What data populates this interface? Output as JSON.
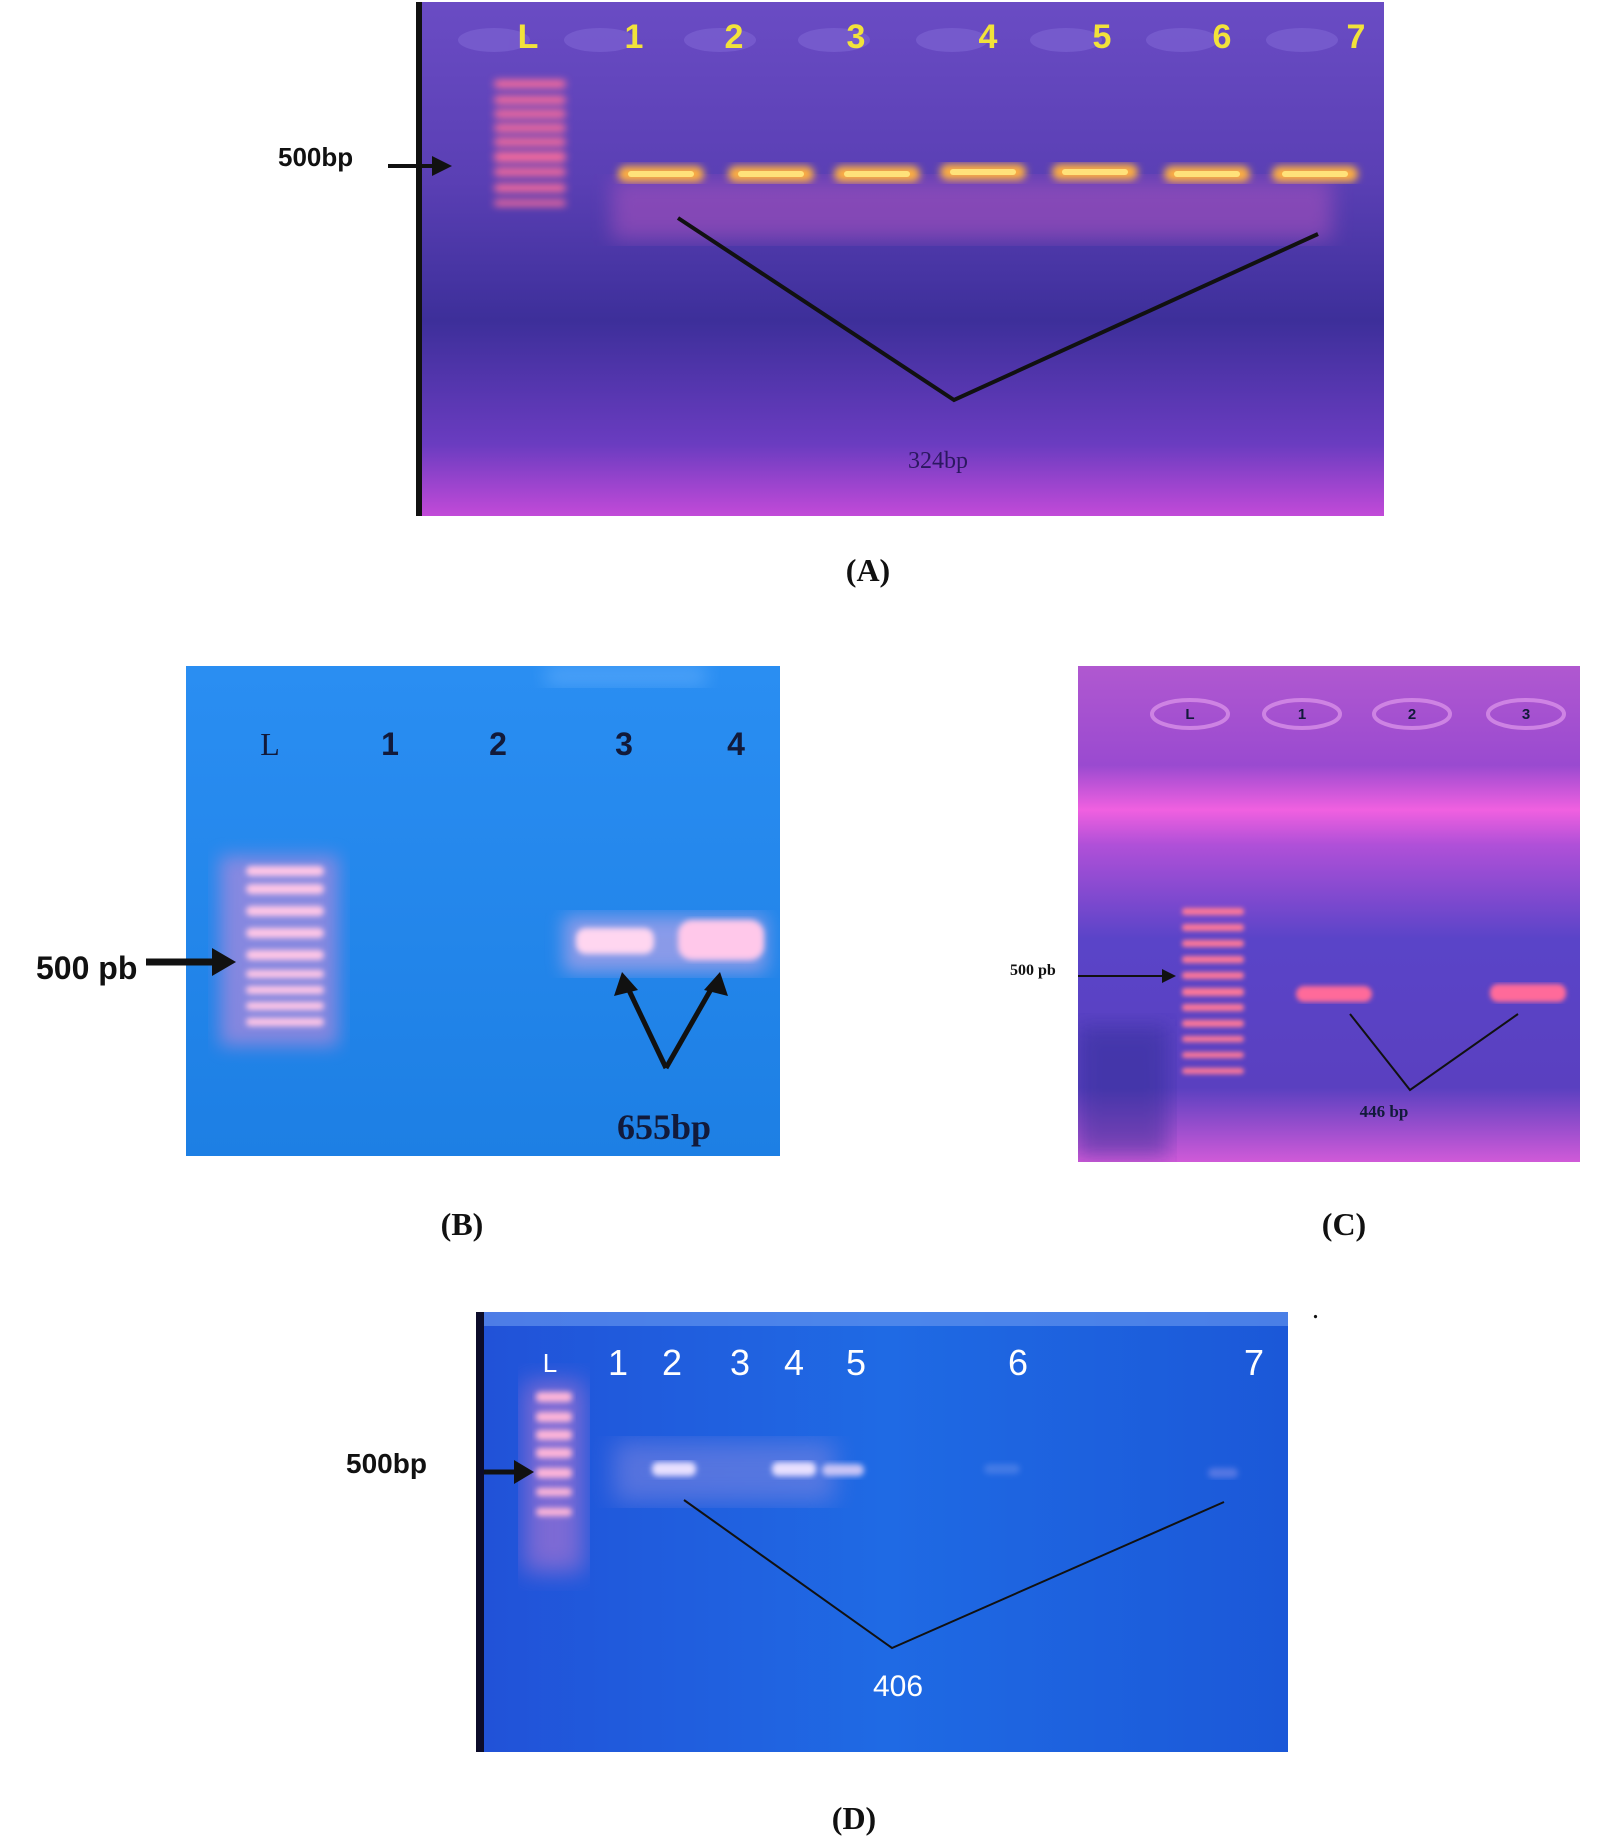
{
  "panels": {
    "a": {
      "caption": "(A)",
      "lanes": [
        "L",
        "1",
        "2",
        "3",
        "4",
        "5",
        "6",
        "7"
      ],
      "marker": "500bp",
      "product": "324bp"
    },
    "b": {
      "caption": "(B)",
      "lanes": [
        "L",
        "1",
        "2",
        "3",
        "4"
      ],
      "marker": "500 pb",
      "product": "655bp"
    },
    "c": {
      "caption": "(C)",
      "lanes": [
        "L",
        "1",
        "2",
        "3"
      ],
      "marker": "500 pb",
      "product": "446 bp"
    },
    "d": {
      "caption": "(D)",
      "lanes": [
        "L",
        "1",
        "2",
        "3",
        "4",
        "5",
        "6",
        "7"
      ],
      "marker": "500bp",
      "product": "406"
    }
  },
  "stray_mark": ".",
  "colors": {
    "gel_a_bg": "#5a3fb0",
    "gel_b_bg": "#1f88e8",
    "gel_c_bg": "#7a3ec8",
    "gel_d_bg": "#1a5ee0",
    "band_orange": "#ffcc55",
    "band_pink": "#ff6fa8"
  }
}
